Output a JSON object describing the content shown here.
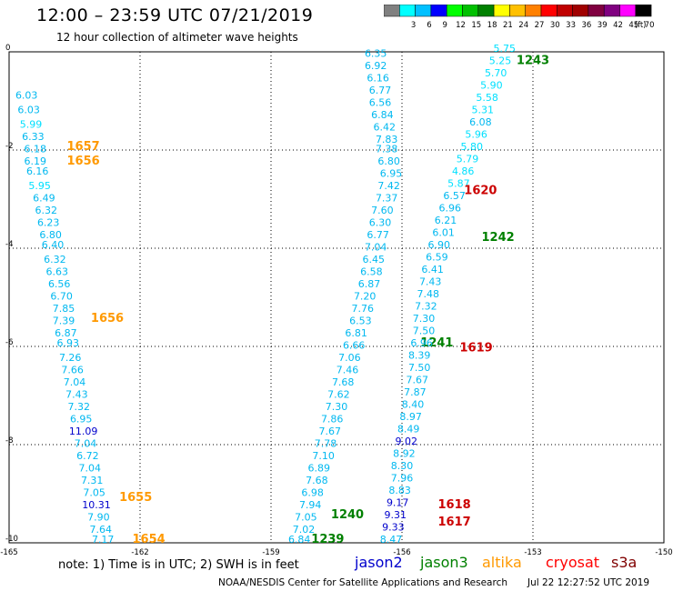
{
  "header": {
    "title": "12:00 – 23:59 UTC 07/21/2019",
    "subtitle": "12 hour collection of altimeter wave heights"
  },
  "colorbar": {
    "unit": "(ft)",
    "bins": [
      {
        "label": "",
        "color": "#808080"
      },
      {
        "label": "3",
        "color": "#00ffff"
      },
      {
        "label": "6",
        "color": "#00c0ff"
      },
      {
        "label": "9",
        "color": "#0000ff"
      },
      {
        "label": "12",
        "color": "#00ff00"
      },
      {
        "label": "15",
        "color": "#00c000"
      },
      {
        "label": "18",
        "color": "#008000"
      },
      {
        "label": "21",
        "color": "#ffff00"
      },
      {
        "label": "24",
        "color": "#ffc000"
      },
      {
        "label": "27",
        "color": "#ff8000"
      },
      {
        "label": "30",
        "color": "#ff0000"
      },
      {
        "label": "33",
        "color": "#c00000"
      },
      {
        "label": "36",
        "color": "#a00000"
      },
      {
        "label": "39",
        "color": "#800040"
      },
      {
        "label": "42",
        "color": "#800080"
      },
      {
        "label": "45",
        "color": "#ff00ff"
      },
      {
        "label": "70",
        "color": "#000000"
      }
    ]
  },
  "footer": {
    "note": "note: 1) Time is in UTC; 2) SWH is in feet",
    "credit": "NOAA/NESDIS Center for Satellite Applications and Research",
    "date": "Jul 22 12:27:52 UTC 2019",
    "satellites": [
      {
        "name": "jason2",
        "color": "#0000cc"
      },
      {
        "name": "jason3",
        "color": "#008000"
      },
      {
        "name": "altika",
        "color": "#ff9900"
      },
      {
        "name": "cryosat",
        "color": "#ff0000"
      },
      {
        "name": "s3a",
        "color": "#800000"
      }
    ]
  },
  "chart_data": {
    "type": "scatter",
    "xlim": [
      -165,
      -150
    ],
    "ylim": [
      -10,
      0
    ],
    "x_ticks": [
      "-165",
      "-162",
      "-159",
      "-156",
      "-153",
      "-150"
    ],
    "y_ticks": [
      "0",
      "-2",
      "-4",
      "-6",
      "-8",
      "-10"
    ],
    "grid": true,
    "tracks": [
      {
        "points": [
          {
            "lon": -164.6,
            "lat": -0.95,
            "v": "6.03"
          },
          {
            "lon": -164.55,
            "lat": -1.25,
            "v": "6.03"
          },
          {
            "lon": -164.5,
            "lat": -1.55,
            "v": "5.99"
          },
          {
            "lon": -164.45,
            "lat": -1.8,
            "v": "6.33"
          },
          {
            "lon": -164.4,
            "lat": -2.05,
            "v": "6.18"
          },
          {
            "lon": -164.4,
            "lat": -2.3,
            "v": "6.19"
          },
          {
            "lon": -164.35,
            "lat": -2.5,
            "v": "6.16"
          },
          {
            "lon": -164.3,
            "lat": -2.8,
            "v": "5.95"
          },
          {
            "lon": -164.2,
            "lat": -3.05,
            "v": "6.49"
          },
          {
            "lon": -164.15,
            "lat": -3.3,
            "v": "6.32"
          },
          {
            "lon": -164.1,
            "lat": -3.55,
            "v": "6.23"
          },
          {
            "lon": -164.05,
            "lat": -3.8,
            "v": "6.80"
          },
          {
            "lon": -164.0,
            "lat": -4.0,
            "v": "6.40"
          },
          {
            "lon": -163.95,
            "lat": -4.3,
            "v": "6.32"
          },
          {
            "lon": -163.9,
            "lat": -4.55,
            "v": "6.63"
          },
          {
            "lon": -163.85,
            "lat": -4.8,
            "v": "6.56"
          },
          {
            "lon": -163.8,
            "lat": -5.05,
            "v": "6.70"
          },
          {
            "lon": -163.75,
            "lat": -5.3,
            "v": "7.85"
          },
          {
            "lon": -163.75,
            "lat": -5.55,
            "v": "7.39"
          },
          {
            "lon": -163.7,
            "lat": -5.8,
            "v": "6.87"
          },
          {
            "lon": -163.65,
            "lat": -6.0,
            "v": "6.93"
          },
          {
            "lon": -163.6,
            "lat": -6.3,
            "v": "7.26"
          },
          {
            "lon": -163.55,
            "lat": -6.55,
            "v": "7.66"
          },
          {
            "lon": -163.5,
            "lat": -6.8,
            "v": "7.04"
          },
          {
            "lon": -163.45,
            "lat": -7.05,
            "v": "7.43"
          },
          {
            "lon": -163.4,
            "lat": -7.3,
            "v": "7.32"
          },
          {
            "lon": -163.35,
            "lat": -7.55,
            "v": "6.95"
          },
          {
            "lon": -163.3,
            "lat": -7.8,
            "v": "11.09"
          },
          {
            "lon": -163.25,
            "lat": -8.05,
            "v": "7.04"
          },
          {
            "lon": -163.2,
            "lat": -8.3,
            "v": "6.72"
          },
          {
            "lon": -163.15,
            "lat": -8.55,
            "v": "7.04"
          },
          {
            "lon": -163.1,
            "lat": -8.8,
            "v": "7.31"
          },
          {
            "lon": -163.05,
            "lat": -9.05,
            "v": "7.05"
          },
          {
            "lon": -163.0,
            "lat": -9.3,
            "v": "10.31"
          },
          {
            "lon": -162.95,
            "lat": -9.55,
            "v": "7.90"
          },
          {
            "lon": -162.9,
            "lat": -9.8,
            "v": "7.64"
          },
          {
            "lon": -162.85,
            "lat": -10.0,
            "v": "7.17"
          }
        ],
        "labels": [
          {
            "lon": -163.3,
            "lat": -2.0,
            "time": "1657",
            "color": "#ff9900"
          },
          {
            "lon": -163.3,
            "lat": -2.3,
            "time": "1656",
            "color": "#ff9900"
          },
          {
            "lon": -162.75,
            "lat": -5.5,
            "time": "1656",
            "color": "#ff9900"
          },
          {
            "lon": -162.1,
            "lat": -9.15,
            "time": "1655",
            "color": "#ff9900"
          },
          {
            "lon": -161.8,
            "lat": -10.0,
            "time": "1654",
            "color": "#ff9900"
          }
        ]
      },
      {
        "points": [
          {
            "lon": -156.6,
            "lat": -0.1,
            "v": "6.35"
          },
          {
            "lon": -156.6,
            "lat": -0.35,
            "v": "6.92"
          },
          {
            "lon": -156.55,
            "lat": -0.6,
            "v": "6.16"
          },
          {
            "lon": -156.5,
            "lat": -0.85,
            "v": "6.77"
          },
          {
            "lon": -156.5,
            "lat": -1.1,
            "v": "6.56"
          },
          {
            "lon": -156.45,
            "lat": -1.35,
            "v": "6.84"
          },
          {
            "lon": -156.4,
            "lat": -1.6,
            "v": "6.42"
          },
          {
            "lon": -156.35,
            "lat": -1.85,
            "v": "7.83"
          },
          {
            "lon": -156.35,
            "lat": -2.05,
            "v": "7.38"
          },
          {
            "lon": -156.3,
            "lat": -2.3,
            "v": "6.80"
          },
          {
            "lon": -156.25,
            "lat": -2.55,
            "v": "6.95"
          },
          {
            "lon": -156.3,
            "lat": -2.8,
            "v": "7.42"
          },
          {
            "lon": -156.35,
            "lat": -3.05,
            "v": "7.37"
          },
          {
            "lon": -156.45,
            "lat": -3.3,
            "v": "7.60"
          },
          {
            "lon": -156.5,
            "lat": -3.55,
            "v": "6.30"
          },
          {
            "lon": -156.55,
            "lat": -3.8,
            "v": "6.77"
          },
          {
            "lon": -156.6,
            "lat": -4.05,
            "v": "7.04"
          },
          {
            "lon": -156.65,
            "lat": -4.3,
            "v": "6.45"
          },
          {
            "lon": -156.7,
            "lat": -4.55,
            "v": "6.58"
          },
          {
            "lon": -156.75,
            "lat": -4.8,
            "v": "6.87"
          },
          {
            "lon": -156.85,
            "lat": -5.05,
            "v": "7.20"
          },
          {
            "lon": -156.9,
            "lat": -5.3,
            "v": "7.76"
          },
          {
            "lon": -156.95,
            "lat": -5.55,
            "v": "6.53"
          },
          {
            "lon": -157.05,
            "lat": -5.8,
            "v": "6.81"
          },
          {
            "lon": -157.1,
            "lat": -6.05,
            "v": "6.66"
          },
          {
            "lon": -157.2,
            "lat": -6.3,
            "v": "7.06"
          },
          {
            "lon": -157.25,
            "lat": -6.55,
            "v": "7.46"
          },
          {
            "lon": -157.35,
            "lat": -6.8,
            "v": "7.68"
          },
          {
            "lon": -157.45,
            "lat": -7.05,
            "v": "7.62"
          },
          {
            "lon": -157.5,
            "lat": -7.3,
            "v": "7.30"
          },
          {
            "lon": -157.6,
            "lat": -7.55,
            "v": "7.86"
          },
          {
            "lon": -157.65,
            "lat": -7.8,
            "v": "7.67"
          },
          {
            "lon": -157.75,
            "lat": -8.05,
            "v": "7.78"
          },
          {
            "lon": -157.8,
            "lat": -8.3,
            "v": "7.10"
          },
          {
            "lon": -157.9,
            "lat": -8.55,
            "v": "6.89"
          },
          {
            "lon": -157.95,
            "lat": -8.8,
            "v": "7.68"
          },
          {
            "lon": -158.05,
            "lat": -9.05,
            "v": "6.98"
          },
          {
            "lon": -158.1,
            "lat": -9.3,
            "v": "7.94"
          },
          {
            "lon": -158.2,
            "lat": -9.55,
            "v": "7.05"
          },
          {
            "lon": -158.25,
            "lat": -9.8,
            "v": "7.02"
          },
          {
            "lon": -158.35,
            "lat": -10.0,
            "v": "6.84"
          }
        ],
        "labels": [
          {
            "lon": -155.2,
            "lat": -6.0,
            "time": "1241",
            "color": "#008000"
          },
          {
            "lon": -157.25,
            "lat": -9.5,
            "time": "1240",
            "color": "#008000"
          },
          {
            "lon": -157.7,
            "lat": -10.0,
            "time": "1239",
            "color": "#008000"
          }
        ]
      },
      {
        "points": [
          {
            "lon": -153.65,
            "lat": 0.0,
            "v": "5.75"
          },
          {
            "lon": -153.75,
            "lat": -0.25,
            "v": "5.25"
          },
          {
            "lon": -153.85,
            "lat": -0.5,
            "v": "5.70"
          },
          {
            "lon": -153.95,
            "lat": -0.75,
            "v": "5.90"
          },
          {
            "lon": -154.05,
            "lat": -1.0,
            "v": "5.58"
          },
          {
            "lon": -154.15,
            "lat": -1.25,
            "v": "5.31"
          },
          {
            "lon": -154.2,
            "lat": -1.5,
            "v": "6.08"
          },
          {
            "lon": -154.3,
            "lat": -1.75,
            "v": "5.96"
          },
          {
            "lon": -154.4,
            "lat": -2.0,
            "v": "5.80"
          },
          {
            "lon": -154.5,
            "lat": -2.25,
            "v": "5.79"
          },
          {
            "lon": -154.6,
            "lat": -2.5,
            "v": "4.86"
          },
          {
            "lon": -154.7,
            "lat": -2.75,
            "v": "5.87"
          },
          {
            "lon": -154.8,
            "lat": -3.0,
            "v": "6.57"
          },
          {
            "lon": -154.9,
            "lat": -3.25,
            "v": "6.96"
          },
          {
            "lon": -155.0,
            "lat": -3.5,
            "v": "6.21"
          },
          {
            "lon": -155.05,
            "lat": -3.75,
            "v": "6.01"
          },
          {
            "lon": -155.15,
            "lat": -4.0,
            "v": "6.90"
          },
          {
            "lon": -155.2,
            "lat": -4.25,
            "v": "6.59"
          },
          {
            "lon": -155.3,
            "lat": -4.5,
            "v": "6.41"
          },
          {
            "lon": -155.35,
            "lat": -4.75,
            "v": "7.43"
          },
          {
            "lon": -155.4,
            "lat": -5.0,
            "v": "7.48"
          },
          {
            "lon": -155.45,
            "lat": -5.25,
            "v": "7.32"
          },
          {
            "lon": -155.5,
            "lat": -5.5,
            "v": "7.30"
          },
          {
            "lon": -155.5,
            "lat": -5.75,
            "v": "7.50"
          },
          {
            "lon": -155.55,
            "lat": -6.0,
            "v": "6.96"
          },
          {
            "lon": -155.6,
            "lat": -6.25,
            "v": "8.39"
          },
          {
            "lon": -155.6,
            "lat": -6.5,
            "v": "7.50"
          },
          {
            "lon": -155.65,
            "lat": -6.75,
            "v": "7.67"
          },
          {
            "lon": -155.7,
            "lat": -7.0,
            "v": "7.87"
          },
          {
            "lon": -155.75,
            "lat": -7.25,
            "v": "8.40"
          },
          {
            "lon": -155.8,
            "lat": -7.5,
            "v": "8.97"
          },
          {
            "lon": -155.85,
            "lat": -7.75,
            "v": "8.49"
          },
          {
            "lon": -155.9,
            "lat": -8.0,
            "v": "9.02"
          },
          {
            "lon": -155.95,
            "lat": -8.25,
            "v": "8.92"
          },
          {
            "lon": -156.0,
            "lat": -8.5,
            "v": "8.30"
          },
          {
            "lon": -156.0,
            "lat": -8.75,
            "v": "7.96"
          },
          {
            "lon": -156.05,
            "lat": -9.0,
            "v": "8.83"
          },
          {
            "lon": -156.1,
            "lat": -9.25,
            "v": "9.17"
          },
          {
            "lon": -156.15,
            "lat": -9.5,
            "v": "9.31"
          },
          {
            "lon": -156.2,
            "lat": -9.75,
            "v": "9.33"
          },
          {
            "lon": -156.25,
            "lat": -10.0,
            "v": "8.47"
          }
        ],
        "labels": [
          {
            "lon": -153.0,
            "lat": -0.25,
            "time": "1243",
            "color": "#008000"
          },
          {
            "lon": -154.2,
            "lat": -2.9,
            "time": "1620",
            "color": "#cc0000"
          },
          {
            "lon": -153.8,
            "lat": -3.85,
            "time": "1242",
            "color": "#008000"
          },
          {
            "lon": -154.3,
            "lat": -6.1,
            "time": "1619",
            "color": "#cc0000"
          },
          {
            "lon": -154.8,
            "lat": -9.3,
            "time": "1618",
            "color": "#cc0000"
          },
          {
            "lon": -154.8,
            "lat": -9.65,
            "time": "1617",
            "color": "#cc0000"
          }
        ]
      }
    ]
  }
}
